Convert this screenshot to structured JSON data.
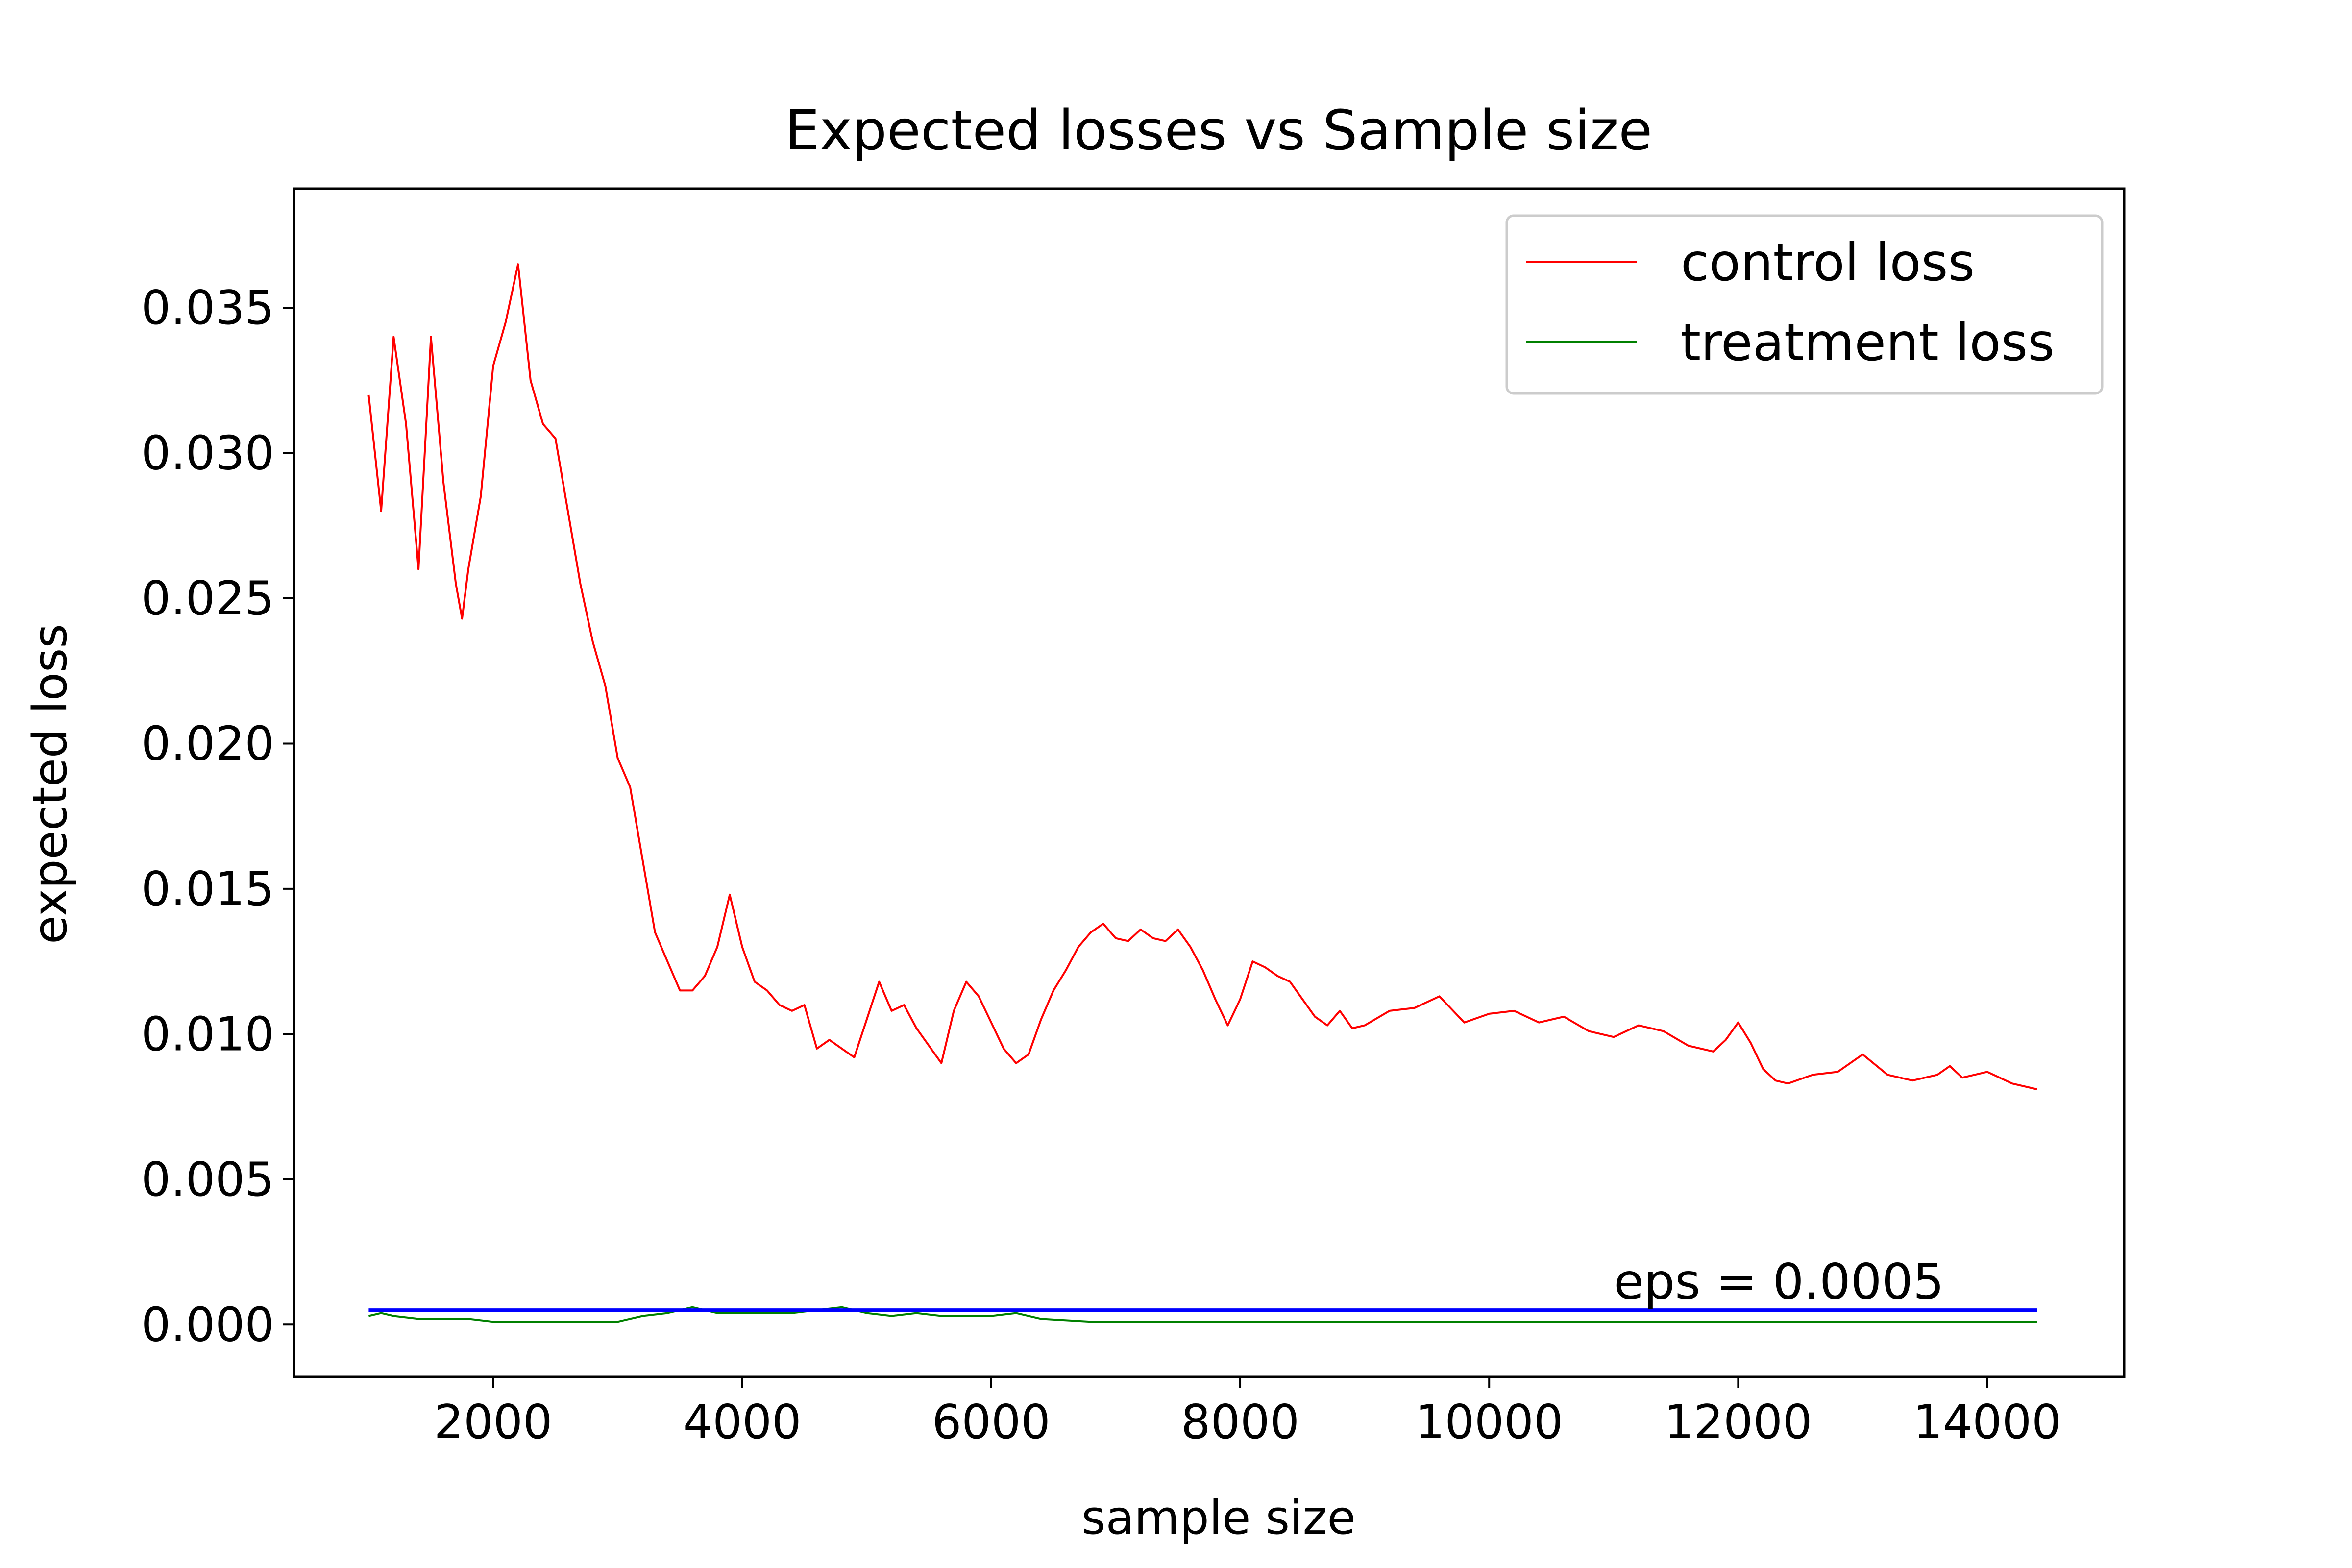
{
  "chart_data": {
    "type": "line",
    "title": "Expected losses vs Sample size",
    "xlabel": "sample size",
    "ylabel": "expected loss",
    "xlim": [
      400,
      15100
    ],
    "ylim": [
      -0.0018,
      0.0391
    ],
    "x_ticks": [
      2000,
      4000,
      6000,
      8000,
      10000,
      12000,
      14000
    ],
    "x_tick_labels": [
      "2000",
      "4000",
      "6000",
      "8000",
      "10000",
      "12000",
      "14000"
    ],
    "y_ticks": [
      0.0,
      0.005,
      0.01,
      0.015,
      0.02,
      0.025,
      0.03,
      0.035
    ],
    "y_tick_labels": [
      "0.000",
      "0.005",
      "0.010",
      "0.015",
      "0.020",
      "0.025",
      "0.030",
      "0.035"
    ],
    "grid": false,
    "legend_position": "top-right",
    "series": [
      {
        "name": "control loss",
        "color": "#ff0000",
        "x": [
          1000,
          1100,
          1200,
          1300,
          1400,
          1500,
          1600,
          1700,
          1750,
          1800,
          1900,
          2000,
          2100,
          2200,
          2300,
          2400,
          2500,
          2600,
          2700,
          2800,
          2900,
          3000,
          3100,
          3200,
          3300,
          3400,
          3500,
          3600,
          3700,
          3800,
          3900,
          4000,
          4100,
          4200,
          4300,
          4400,
          4500,
          4600,
          4700,
          4800,
          4900,
          5000,
          5100,
          5200,
          5300,
          5400,
          5500,
          5600,
          5700,
          5800,
          5900,
          6000,
          6100,
          6200,
          6300,
          6400,
          6500,
          6600,
          6700,
          6800,
          6900,
          7000,
          7100,
          7200,
          7300,
          7400,
          7500,
          7600,
          7700,
          7800,
          7900,
          8000,
          8100,
          8200,
          8300,
          8400,
          8500,
          8600,
          8700,
          8800,
          8900,
          9000,
          9200,
          9400,
          9600,
          9800,
          10000,
          10200,
          10400,
          10600,
          10800,
          11000,
          11200,
          11400,
          11600,
          11800,
          11900,
          12000,
          12100,
          12200,
          12300,
          12400,
          12600,
          12800,
          13000,
          13200,
          13400,
          13600,
          13700,
          13800,
          14000,
          14200,
          14400
        ],
        "y": [
          0.032,
          0.028,
          0.034,
          0.031,
          0.026,
          0.034,
          0.029,
          0.0255,
          0.0243,
          0.026,
          0.0285,
          0.033,
          0.0345,
          0.0365,
          0.0325,
          0.031,
          0.0305,
          0.028,
          0.0255,
          0.0235,
          0.022,
          0.0195,
          0.0185,
          0.016,
          0.0135,
          0.0125,
          0.0115,
          0.0115,
          0.012,
          0.013,
          0.0148,
          0.013,
          0.0118,
          0.0115,
          0.011,
          0.0108,
          0.011,
          0.0095,
          0.0098,
          0.0095,
          0.0092,
          0.0105,
          0.0118,
          0.0108,
          0.011,
          0.0102,
          0.0096,
          0.009,
          0.0108,
          0.0118,
          0.0113,
          0.0104,
          0.0095,
          0.009,
          0.0093,
          0.0105,
          0.0115,
          0.0122,
          0.013,
          0.0135,
          0.0138,
          0.0133,
          0.0132,
          0.0136,
          0.0133,
          0.0132,
          0.0136,
          0.013,
          0.0122,
          0.0112,
          0.0103,
          0.0112,
          0.0125,
          0.0123,
          0.012,
          0.0118,
          0.0112,
          0.0106,
          0.0103,
          0.0108,
          0.0102,
          0.0103,
          0.0108,
          0.0109,
          0.0113,
          0.0104,
          0.0107,
          0.0108,
          0.0104,
          0.0106,
          0.0101,
          0.0099,
          0.0103,
          0.0101,
          0.0096,
          0.0094,
          0.0098,
          0.0104,
          0.0097,
          0.0088,
          0.0084,
          0.0083,
          0.0086,
          0.0087,
          0.0093,
          0.0086,
          0.0084,
          0.0086,
          0.0089,
          0.0085,
          0.0087,
          0.0083,
          0.0081
        ]
      },
      {
        "name": "treatment loss",
        "color": "#008000",
        "x": [
          1000,
          1100,
          1200,
          1400,
          1600,
          1800,
          2000,
          2200,
          2500,
          2800,
          3000,
          3200,
          3400,
          3600,
          3800,
          4000,
          4200,
          4400,
          4600,
          4800,
          5000,
          5200,
          5400,
          5600,
          5800,
          6000,
          6200,
          6400,
          6800,
          7200,
          7600,
          8000,
          8500,
          9000,
          10000,
          11000,
          12000,
          12500,
          13000,
          13500,
          14000,
          14400
        ],
        "y": [
          0.0003,
          0.0004,
          0.0003,
          0.0002,
          0.0002,
          0.0002,
          0.0001,
          0.0001,
          0.0001,
          0.0001,
          0.0001,
          0.0003,
          0.0004,
          0.0006,
          0.0004,
          0.0004,
          0.0004,
          0.0004,
          0.0005,
          0.0006,
          0.0004,
          0.0003,
          0.0004,
          0.0003,
          0.0003,
          0.0003,
          0.0004,
          0.0002,
          0.0001,
          0.0001,
          0.0001,
          0.0001,
          0.0001,
          0.0001,
          0.0001,
          0.0001,
          0.0001,
          0.0001,
          0.0001,
          0.0001,
          0.0001,
          0.0001
        ]
      },
      {
        "color": "#0000ff",
        "x": [
          1000,
          14400
        ],
        "y": [
          0.0005,
          0.0005
        ]
      }
    ],
    "annotations": [
      {
        "text": "eps = 0.0005",
        "x": 11000,
        "y": 0.0007
      }
    ]
  }
}
